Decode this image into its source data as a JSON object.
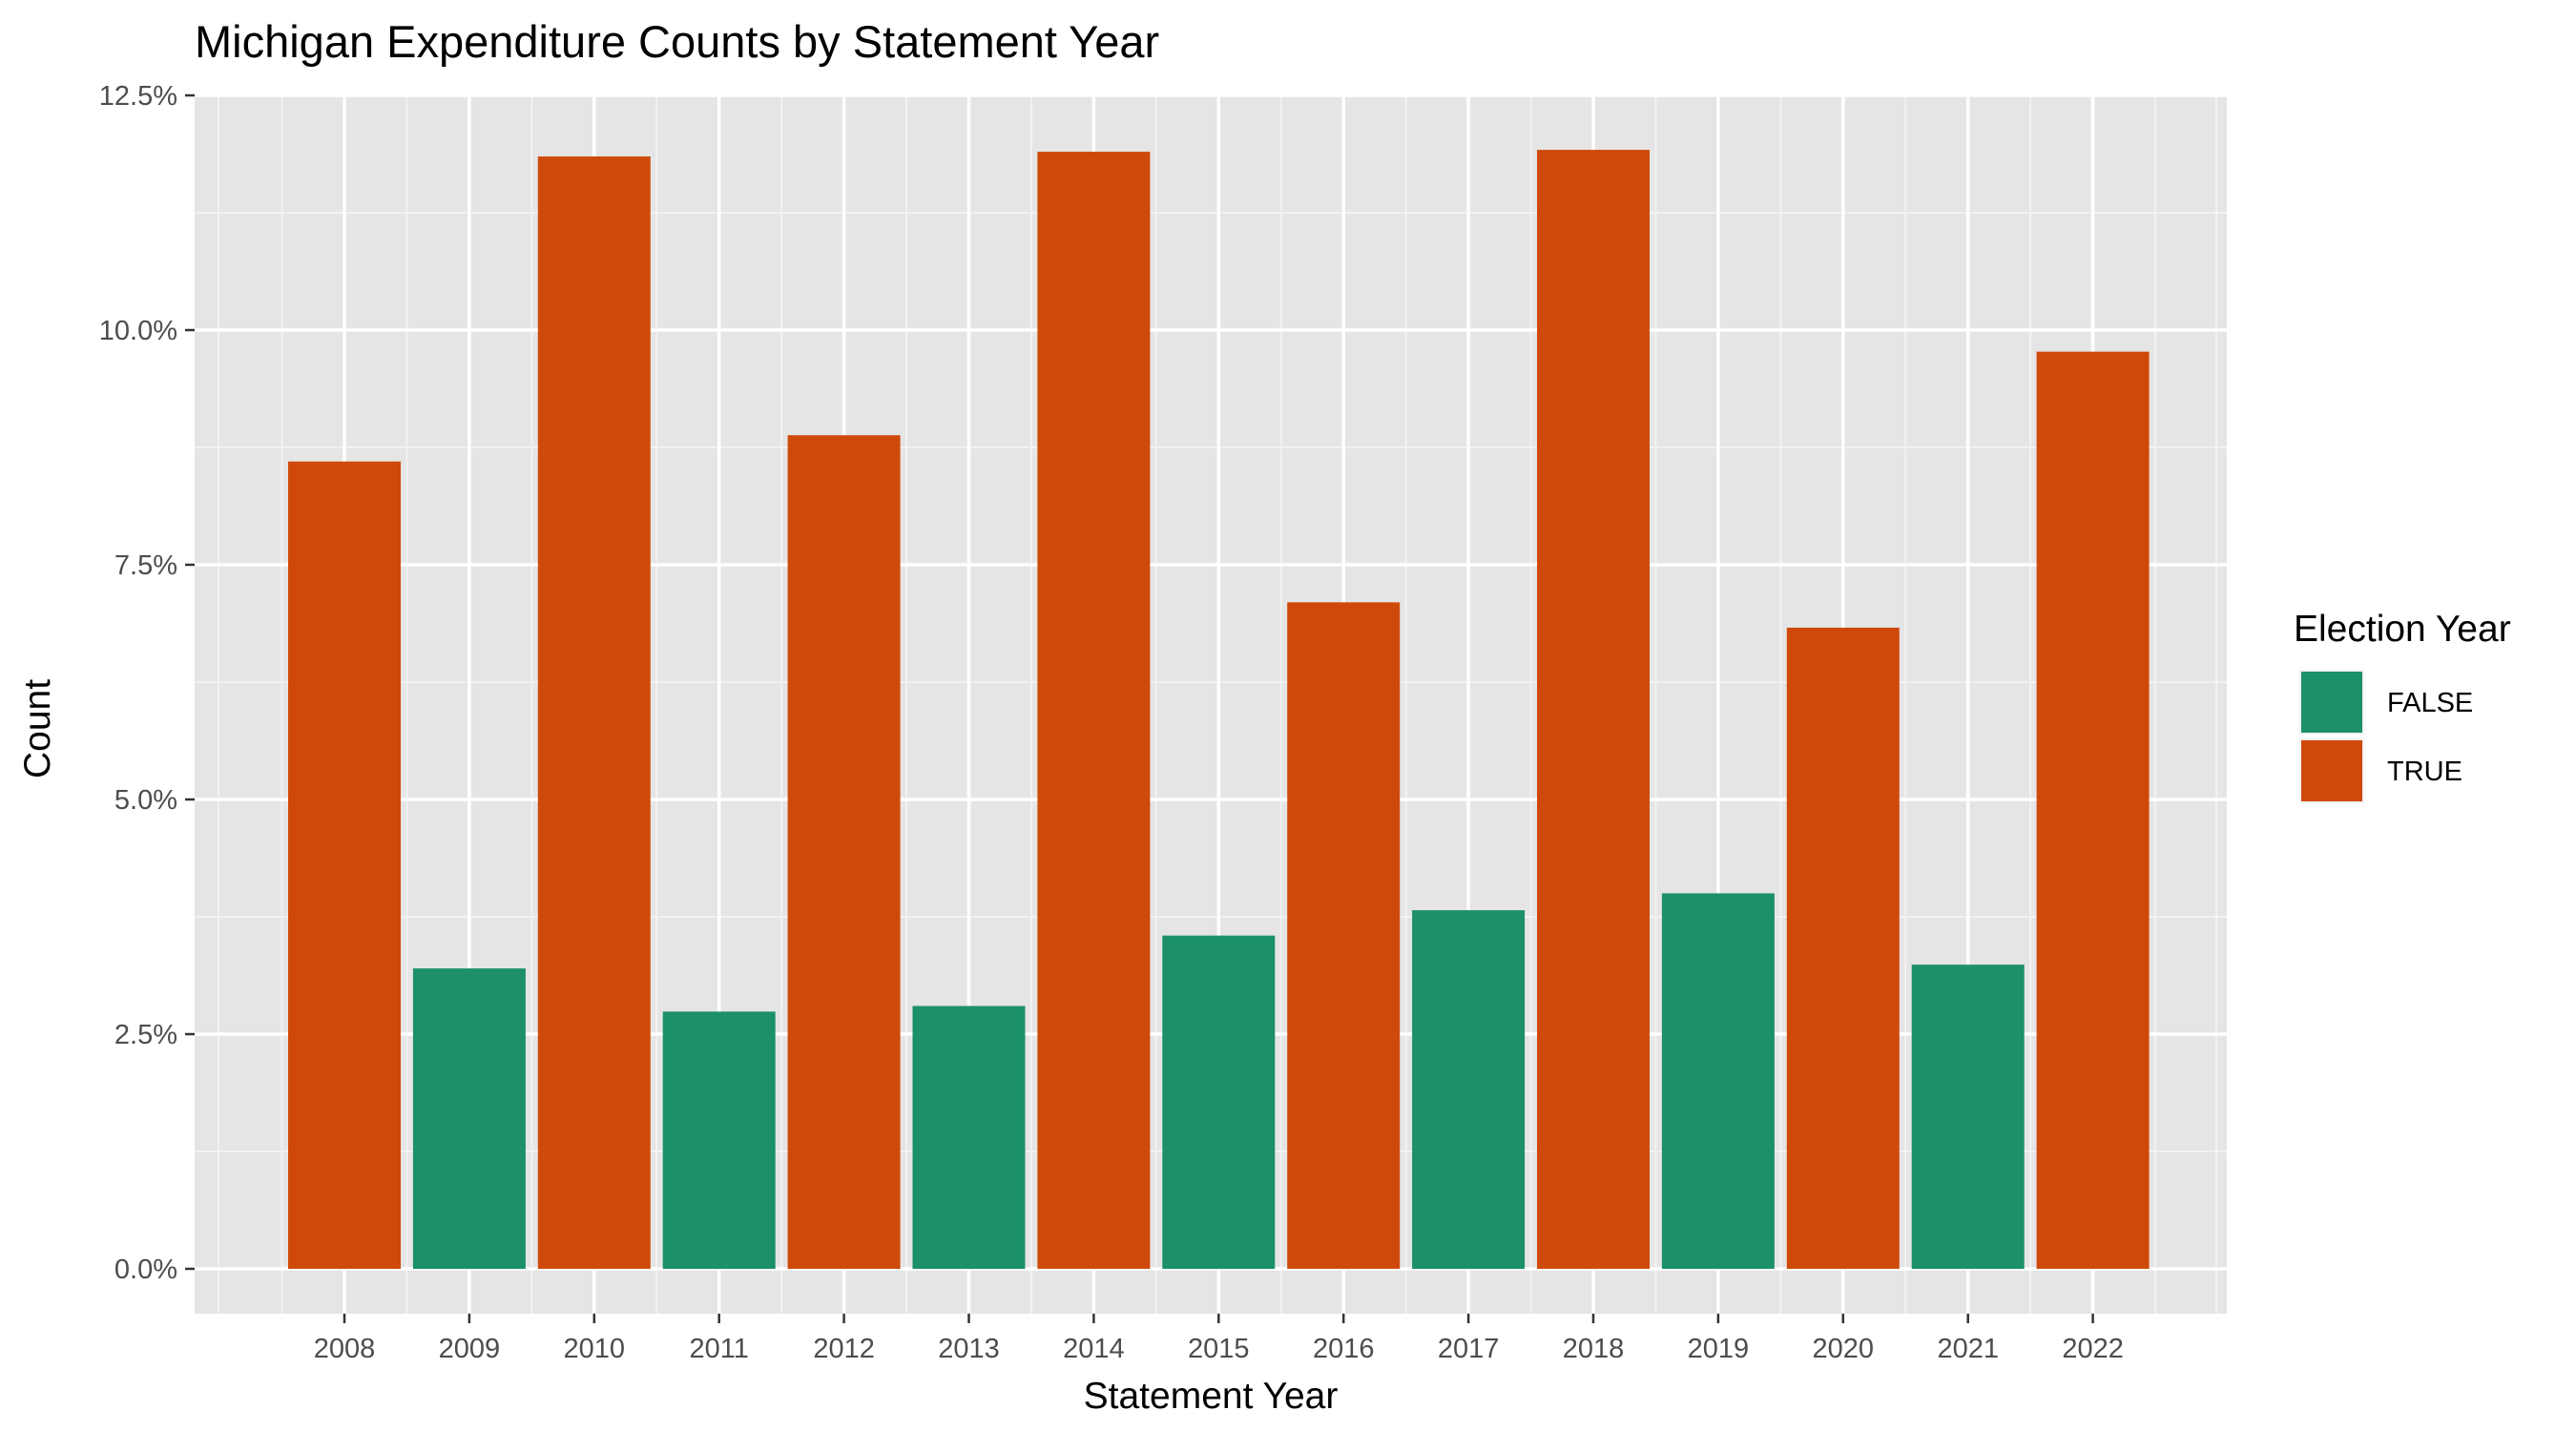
{
  "chart_data": {
    "type": "bar",
    "title": "Michigan Expenditure Counts by Statement Year",
    "xlabel": "Statement Year",
    "ylabel": "Count",
    "ylim": [
      -0.5,
      12.5
    ],
    "y_ticks": [
      0,
      2.5,
      5,
      7.5,
      10,
      12.5
    ],
    "y_tick_labels": [
      "0.0%",
      "2.5%",
      "5.0%",
      "7.5%",
      "10.0%",
      "12.5%"
    ],
    "value_unit": "percent",
    "grid": true,
    "legend": {
      "title": "Election Year",
      "position": "right",
      "entries": [
        {
          "label": "FALSE",
          "color": "#1b9069"
        },
        {
          "label": "TRUE",
          "color": "#cf4a0a"
        }
      ]
    },
    "categories": [
      "2008",
      "2009",
      "2010",
      "2011",
      "2012",
      "2013",
      "2014",
      "2015",
      "2016",
      "2017",
      "2018",
      "2019",
      "2020",
      "2021",
      "2022"
    ],
    "values": [
      8.6,
      3.2,
      11.85,
      2.74,
      8.88,
      2.8,
      11.9,
      3.55,
      7.1,
      3.82,
      11.92,
      4.0,
      6.83,
      3.24,
      9.77
    ],
    "election_year": [
      "TRUE",
      "FALSE",
      "TRUE",
      "FALSE",
      "TRUE",
      "FALSE",
      "TRUE",
      "FALSE",
      "TRUE",
      "FALSE",
      "TRUE",
      "FALSE",
      "TRUE",
      "FALSE",
      "TRUE"
    ]
  }
}
